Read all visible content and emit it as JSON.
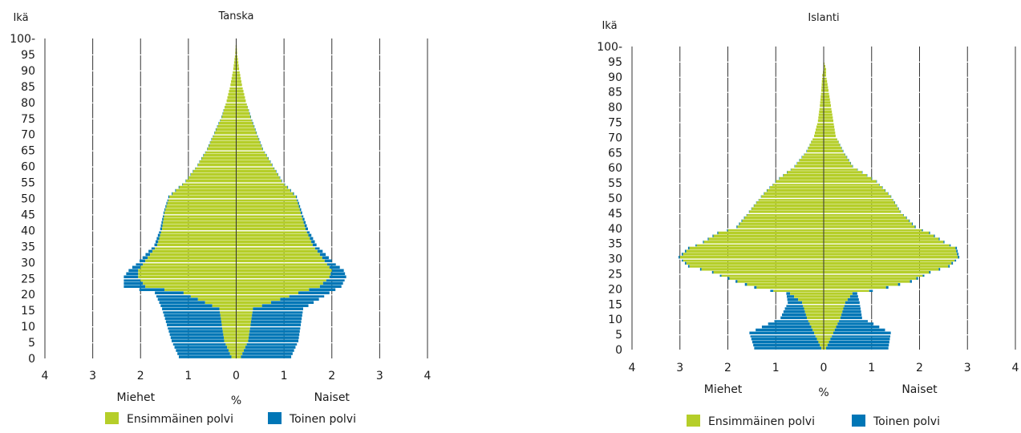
{
  "chart_data": [
    {
      "type": "bar",
      "title": "Tanska",
      "ylabel": "Ikä",
      "xlabel": "%",
      "left_label": "Miehet",
      "right_label": "Naiset",
      "x_ticks": [
        "4",
        "3",
        "2",
        "1",
        "0",
        "1",
        "2",
        "3",
        "4"
      ],
      "y_ticks": [
        "0",
        "5",
        "10",
        "15",
        "20",
        "25",
        "30",
        "35",
        "40",
        "45",
        "50",
        "55",
        "60",
        "65",
        "70",
        "75",
        "80",
        "85",
        "90",
        "95",
        "100-"
      ],
      "xlim": [
        -4,
        4
      ],
      "ylim": [
        0,
        100
      ],
      "grid": "vertical",
      "legend": "bottom",
      "series": [
        {
          "name": "Ensimmäinen polvi",
          "color": "#b5ce29",
          "ages": [
            0,
            5,
            10,
            15,
            20,
            22,
            25,
            27,
            30,
            35,
            40,
            45,
            50,
            55,
            60,
            65,
            70,
            75,
            80,
            85,
            90,
            95,
            100
          ],
          "men": [
            0.1,
            0.25,
            0.3,
            0.35,
            1.1,
            1.9,
            2.05,
            2.05,
            1.9,
            1.65,
            1.55,
            1.5,
            1.4,
            1.05,
            0.8,
            0.6,
            0.45,
            0.3,
            0.2,
            0.12,
            0.06,
            0.02,
            0.0
          ],
          "women": [
            0.1,
            0.25,
            0.3,
            0.35,
            1.3,
            1.75,
            1.95,
            2.0,
            1.85,
            1.6,
            1.45,
            1.35,
            1.25,
            0.95,
            0.75,
            0.55,
            0.42,
            0.3,
            0.2,
            0.12,
            0.06,
            0.02,
            0.0
          ]
        },
        {
          "name": "Toinen polvi",
          "color": "#0076b6",
          "ages": [
            0,
            5,
            10,
            15,
            20,
            22,
            25,
            27,
            30,
            35,
            40,
            45,
            50,
            55,
            60,
            65,
            70,
            75,
            80,
            85,
            90,
            95,
            100
          ],
          "men": [
            1.1,
            1.1,
            1.15,
            1.2,
            0.6,
            0.45,
            0.3,
            0.2,
            0.12,
            0.06,
            0.04,
            0.02,
            0.02,
            0.01,
            0.01,
            0.01,
            0.01,
            0.01,
            0.0,
            0.0,
            0.0,
            0.0,
            0.0
          ],
          "women": [
            1.05,
            1.05,
            1.05,
            1.05,
            0.65,
            0.45,
            0.35,
            0.25,
            0.15,
            0.08,
            0.05,
            0.03,
            0.02,
            0.01,
            0.01,
            0.01,
            0.01,
            0.01,
            0.0,
            0.0,
            0.0,
            0.0,
            0.0
          ]
        }
      ]
    },
    {
      "type": "bar",
      "title": "Islanti",
      "ylabel": "Ikä",
      "xlabel": "%",
      "left_label": "Miehet",
      "right_label": "Naiset",
      "x_ticks": [
        "4",
        "3",
        "2",
        "1",
        "0",
        "1",
        "2",
        "3",
        "4"
      ],
      "y_ticks": [
        "0",
        "5",
        "10",
        "15",
        "20",
        "25",
        "30",
        "35",
        "40",
        "45",
        "50",
        "55",
        "60",
        "65",
        "70",
        "75",
        "80",
        "85",
        "90",
        "95",
        "100-"
      ],
      "xlim": [
        -4,
        4
      ],
      "ylim": [
        0,
        100
      ],
      "grid": "vertical",
      "legend": "bottom",
      "series": [
        {
          "name": "Ensimmäinen polvi",
          "color": "#b5ce29",
          "ages": [
            0,
            5,
            10,
            15,
            18,
            20,
            22,
            25,
            27,
            30,
            33,
            35,
            38,
            40,
            45,
            50,
            55,
            60,
            65,
            70,
            75,
            80,
            85,
            90,
            92,
            95
          ],
          "men": [
            0.05,
            0.2,
            0.35,
            0.45,
            0.7,
            1.4,
            1.8,
            2.3,
            2.8,
            3.0,
            2.8,
            2.5,
            2.2,
            1.8,
            1.55,
            1.3,
            1.0,
            0.6,
            0.35,
            0.2,
            0.12,
            0.08,
            0.05,
            0.03,
            0.0,
            0.0
          ],
          "women": [
            0.05,
            0.2,
            0.35,
            0.45,
            0.6,
            1.3,
            1.8,
            2.2,
            2.6,
            2.8,
            2.75,
            2.5,
            2.2,
            1.9,
            1.6,
            1.4,
            1.1,
            0.6,
            0.4,
            0.25,
            0.2,
            0.15,
            0.1,
            0.05,
            0.05,
            0.0
          ]
        },
        {
          "name": "Toinen polvi",
          "color": "#0076b6",
          "ages": [
            0,
            5,
            10,
            15,
            18,
            20,
            22,
            25,
            27,
            30,
            33,
            35,
            38,
            40,
            45,
            50,
            55,
            60,
            65,
            70,
            75,
            80,
            85,
            90,
            92,
            95
          ],
          "men": [
            1.4,
            1.35,
            0.55,
            0.3,
            0.08,
            0.05,
            0.04,
            0.03,
            0.03,
            0.03,
            0.03,
            0.02,
            0.02,
            0.02,
            0.01,
            0.01,
            0.01,
            0.01,
            0.01,
            0.0,
            0.0,
            0.0,
            0.0,
            0.0,
            0.0,
            0.0
          ],
          "women": [
            1.3,
            1.2,
            0.45,
            0.3,
            0.1,
            0.05,
            0.04,
            0.03,
            0.03,
            0.03,
            0.03,
            0.02,
            0.02,
            0.02,
            0.01,
            0.01,
            0.01,
            0.01,
            0.01,
            0.0,
            0.0,
            0.0,
            0.0,
            0.0,
            0.0,
            0.0
          ]
        }
      ]
    }
  ]
}
